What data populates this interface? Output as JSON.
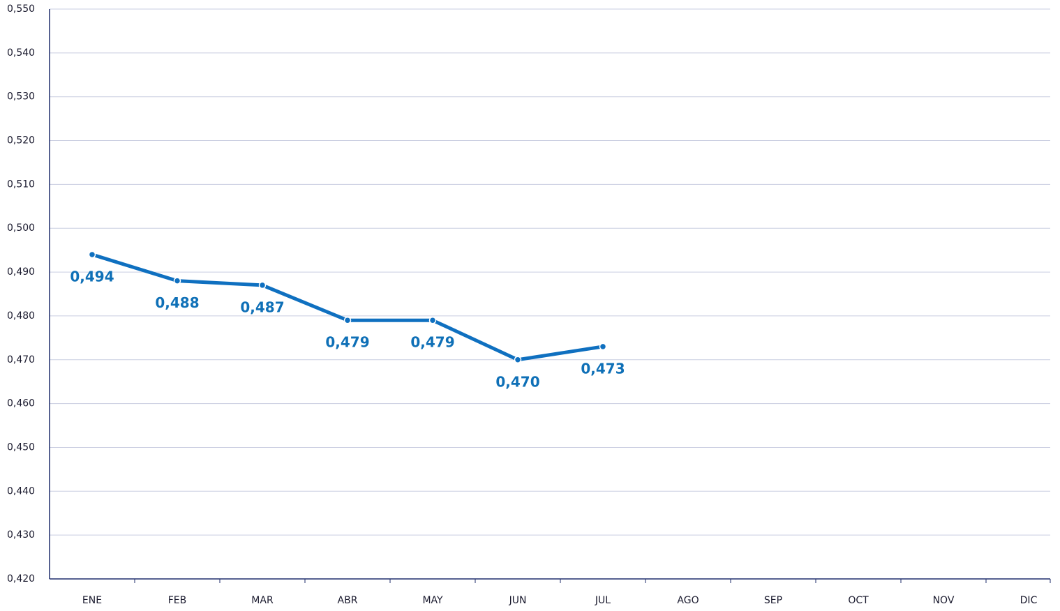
{
  "chart_data": {
    "type": "line",
    "categories": [
      "ENE",
      "FEB",
      "MAR",
      "ABR",
      "MAY",
      "JUN",
      "JUL",
      "AGO",
      "SEP",
      "OCT",
      "NOV",
      "DIC"
    ],
    "series": [
      {
        "color": "#0f70c0",
        "values": [
          0.494,
          0.488,
          0.487,
          0.479,
          0.479,
          0.47,
          0.473,
          null,
          null,
          null,
          null,
          null
        ],
        "value_labels": [
          "0,494",
          "0,488",
          "0,487",
          "0,479",
          "0,479",
          "0,470",
          "0,473",
          null,
          null,
          null,
          null,
          null
        ]
      }
    ],
    "ylim": [
      0.42,
      0.55
    ],
    "yticks": [
      {
        "value": 0.42,
        "label": "0,420"
      },
      {
        "value": 0.43,
        "label": "0,430"
      },
      {
        "value": 0.44,
        "label": "0,440"
      },
      {
        "value": 0.45,
        "label": "0,450"
      },
      {
        "value": 0.46,
        "label": "0,460"
      },
      {
        "value": 0.47,
        "label": "0,470"
      },
      {
        "value": 0.48,
        "label": "0,480"
      },
      {
        "value": 0.49,
        "label": "0,490"
      },
      {
        "value": 0.5,
        "label": "0,500"
      },
      {
        "value": 0.51,
        "label": "0,510"
      },
      {
        "value": 0.52,
        "label": "0,520"
      },
      {
        "value": 0.53,
        "label": "0,530"
      },
      {
        "value": 0.54,
        "label": "0,540"
      },
      {
        "value": 0.55,
        "label": "0,550"
      }
    ],
    "grid": true
  }
}
